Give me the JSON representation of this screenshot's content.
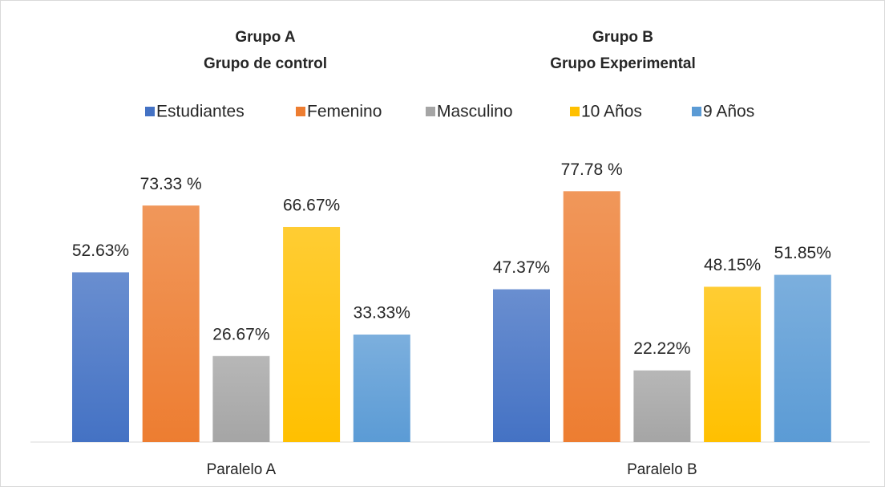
{
  "chart_data": {
    "type": "bar",
    "annotations": [
      [
        "Grupo A",
        "Grupo de control"
      ],
      [
        "Grupo B",
        "Grupo Experimental"
      ]
    ],
    "categories": [
      "Paralelo A",
      "Paralelo B"
    ],
    "series": [
      {
        "name": "Estudiantes",
        "color": "#4472c4",
        "values": [
          52.63,
          47.37
        ],
        "value_labels": [
          "52.63%",
          "47.37%"
        ]
      },
      {
        "name": "Femenino",
        "color": "#ed7d31",
        "values": [
          73.33,
          77.78
        ],
        "value_labels": [
          "73.33 %",
          "77.78 %"
        ]
      },
      {
        "name": "Masculino",
        "color": "#a5a5a5",
        "values": [
          26.67,
          22.22
        ],
        "value_labels": [
          "26.67%",
          "22.22%"
        ]
      },
      {
        "name": "10 Años",
        "color": "#ffc000",
        "values": [
          66.67,
          48.15
        ],
        "value_labels": [
          "66.67%",
          "48.15%"
        ]
      },
      {
        "name": "9 Años",
        "color": "#5b9bd5",
        "values": [
          33.33,
          51.85
        ],
        "value_labels": [
          "33.33%",
          "51.85%"
        ]
      }
    ],
    "ylim": [
      0,
      100
    ],
    "legend": "top"
  }
}
